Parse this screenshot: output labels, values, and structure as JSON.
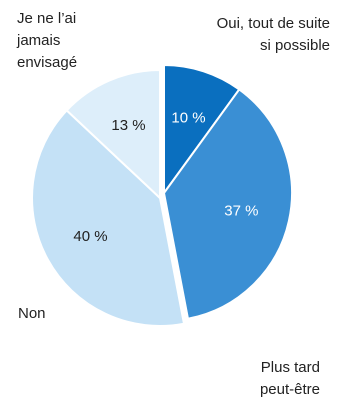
{
  "chart_data": {
    "type": "pie",
    "title": "",
    "slices": [
      {
        "category": "Oui, tout de suite si possible",
        "label_lines": [
          "Oui, tout de suite",
          "si possible"
        ],
        "value": 10,
        "value_label": "10 %",
        "color": "#0a6fbf",
        "text_color": "#ffffff",
        "exploded": true
      },
      {
        "category": "Plus tard peut-être",
        "label_lines": [
          "Plus tard",
          "peut-être"
        ],
        "value": 37,
        "value_label": "37 %",
        "color": "#3a8fd4",
        "text_color": "#ffffff",
        "exploded": true
      },
      {
        "category": "Non",
        "label_lines": [
          "Non"
        ],
        "value": 40,
        "value_label": "40 %",
        "color": "#c4e1f6",
        "text_color": "#222222",
        "exploded": false
      },
      {
        "category": "Je ne l'ai jamais envisagé",
        "label_lines": [
          "Je ne l’ai",
          "jamais",
          "envisagé"
        ],
        "value": 13,
        "value_label": "13 %",
        "color": "#ddeefa",
        "text_color": "#222222",
        "exploded": false
      }
    ]
  }
}
